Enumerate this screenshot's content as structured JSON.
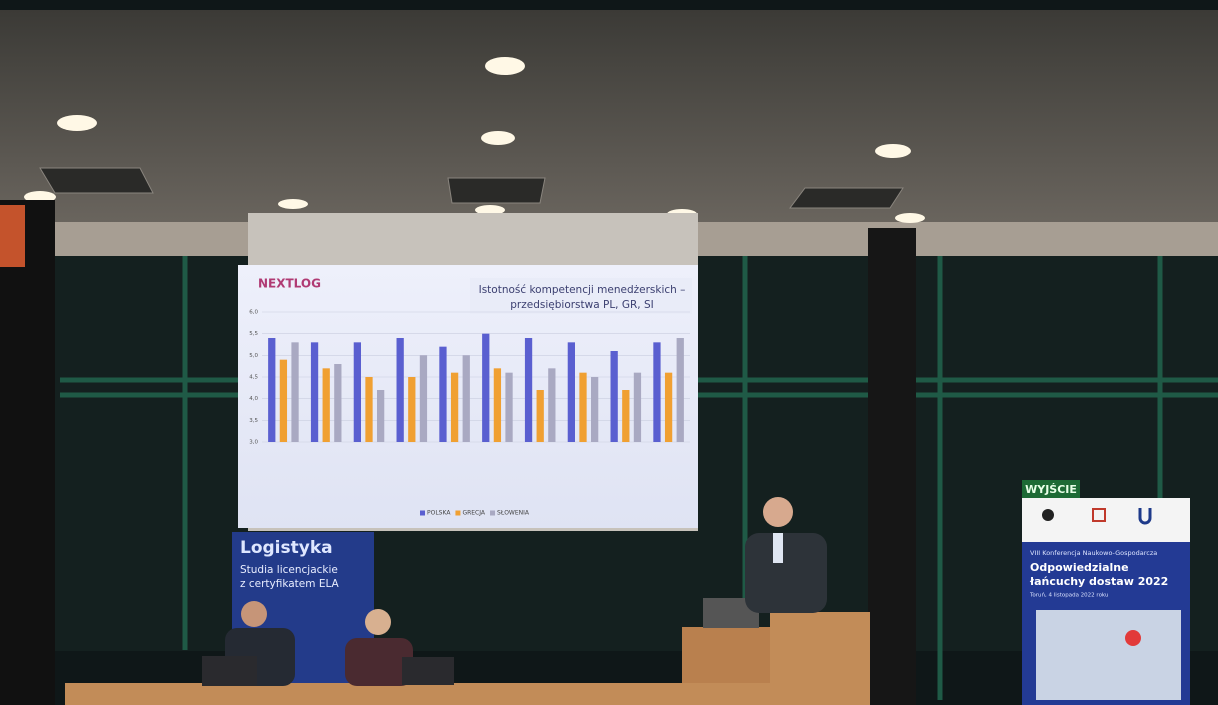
{
  "slide": {
    "logo": "NEXTLOG"
  },
  "chart_data": {
    "type": "bar",
    "title": "Istotność kompetencji menedżerskich –",
    "subtitle": "przedsiębiorstwa PL, GR, SI",
    "categories": [
      null,
      null,
      null,
      null,
      null,
      null,
      null,
      null,
      null,
      null
    ],
    "series": [
      {
        "name": "POLSKA",
        "color": "#5a5fd0",
        "values": [
          5.4,
          5.3,
          5.3,
          5.4,
          5.2,
          5.5,
          5.4,
          5.3,
          5.1,
          5.3
        ]
      },
      {
        "name": "GRECJA",
        "color": "#f0a032",
        "values": [
          4.9,
          4.7,
          4.5,
          4.5,
          4.6,
          4.7,
          4.2,
          4.6,
          4.2,
          4.6
        ]
      },
      {
        "name": "SŁOWENIA",
        "color": "#a9a9c2",
        "values": [
          5.3,
          4.8,
          4.2,
          5.0,
          5.0,
          4.6,
          4.7,
          4.5,
          4.6,
          5.4
        ]
      }
    ],
    "ylim": [
      3,
      6
    ],
    "yticks": [
      {
        "value": 3,
        "label": "3,0"
      },
      {
        "value": 3.5,
        "label": "3,5"
      },
      {
        "value": 4,
        "label": "4,0"
      },
      {
        "value": 4.5,
        "label": "4,5"
      },
      {
        "value": 5,
        "label": "5,0"
      },
      {
        "value": 5.5,
        "label": "5,5"
      },
      {
        "value": 6,
        "label": "6,0"
      }
    ],
    "grid": true,
    "legend": "bottom"
  },
  "scene": {
    "exit_sign": "WYJŚCIE",
    "rollup_left": {
      "title": "Logistyka",
      "line1": "Studia licencjackie",
      "line2": "z certyfikatem ELA"
    },
    "banner_right": {
      "conference": "VIII Konferencja Naukowo-Gospodarcza",
      "title1": "Odpowiedzialne",
      "title2": "łańcuchy dostaw 2022",
      "date": "Toruń, 4 listopada 2022 roku"
    }
  }
}
